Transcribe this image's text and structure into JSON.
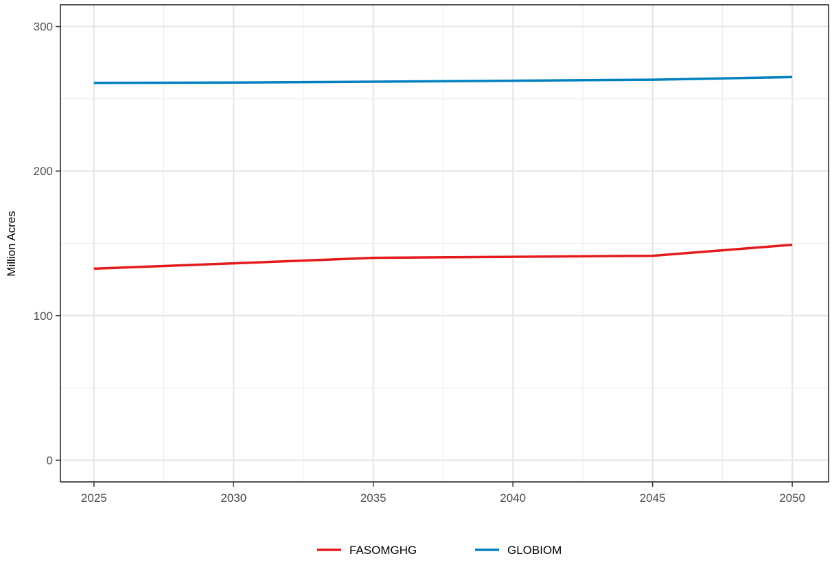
{
  "chart_data": {
    "type": "line",
    "title": "",
    "xlabel": "",
    "ylabel": "Million Acres",
    "x": [
      2025,
      2030,
      2035,
      2040,
      2045,
      2050
    ],
    "xticks": [
      2025,
      2030,
      2035,
      2040,
      2045,
      2050
    ],
    "yticks": [
      0,
      100,
      200,
      300
    ],
    "xlim": [
      2023.8,
      2051.3
    ],
    "ylim": [
      -15,
      315
    ],
    "grid": true,
    "legend_position": "bottom",
    "series": [
      {
        "name": "FASOMGHG",
        "color": "#e41a1c",
        "values": [
          132.5,
          136.2,
          140.0,
          140.7,
          141.4,
          149.0
        ]
      },
      {
        "name": "GLOBIOM",
        "color": "#0080c0",
        "values": [
          261.0,
          261.2,
          261.8,
          262.5,
          263.2,
          265.0
        ]
      }
    ]
  }
}
